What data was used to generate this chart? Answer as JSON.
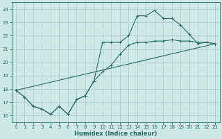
{
  "xlabel": "Humidex (Indice chaleur)",
  "xlim": [
    -0.5,
    23.5
  ],
  "ylim": [
    15.5,
    24.5
  ],
  "xticks": [
    0,
    1,
    2,
    3,
    4,
    5,
    6,
    7,
    8,
    9,
    10,
    11,
    12,
    13,
    14,
    15,
    16,
    17,
    18,
    19,
    20,
    21,
    22,
    23
  ],
  "yticks": [
    16,
    17,
    18,
    19,
    20,
    21,
    22,
    23,
    24
  ],
  "bg_color": "#cde8e5",
  "grid_color": "#b0cece",
  "line_color": "#2a6b65",
  "line1_x": [
    0,
    1,
    2,
    3,
    4,
    5,
    6,
    7,
    8,
    9,
    10,
    11,
    12,
    13,
    14,
    15,
    16,
    17,
    18,
    19,
    20,
    21,
    22,
    23
  ],
  "line1_y": [
    17.9,
    17.4,
    16.7,
    16.5,
    16.1,
    16.7,
    16.1,
    17.2,
    17.5,
    18.6,
    19.3,
    19.8,
    20.6,
    21.3,
    21.5,
    21.5,
    21.6,
    21.6,
    21.7,
    21.6,
    21.6,
    21.5,
    21.5,
    21.4
  ],
  "line2_x": [
    0,
    1,
    2,
    3,
    4,
    5,
    6,
    7,
    8,
    9,
    10,
    11,
    12,
    13,
    14,
    15,
    16,
    17,
    18,
    19,
    20,
    21,
    22,
    23
  ],
  "line2_y": [
    17.9,
    17.4,
    16.7,
    16.5,
    16.1,
    16.7,
    16.1,
    17.2,
    17.5,
    18.6,
    21.5,
    21.5,
    21.5,
    22.0,
    23.5,
    23.5,
    23.9,
    23.3,
    23.3,
    22.8,
    22.1,
    21.4,
    21.5,
    21.4
  ],
  "line3_x": [
    0,
    23
  ],
  "line3_y": [
    17.9,
    21.4
  ]
}
